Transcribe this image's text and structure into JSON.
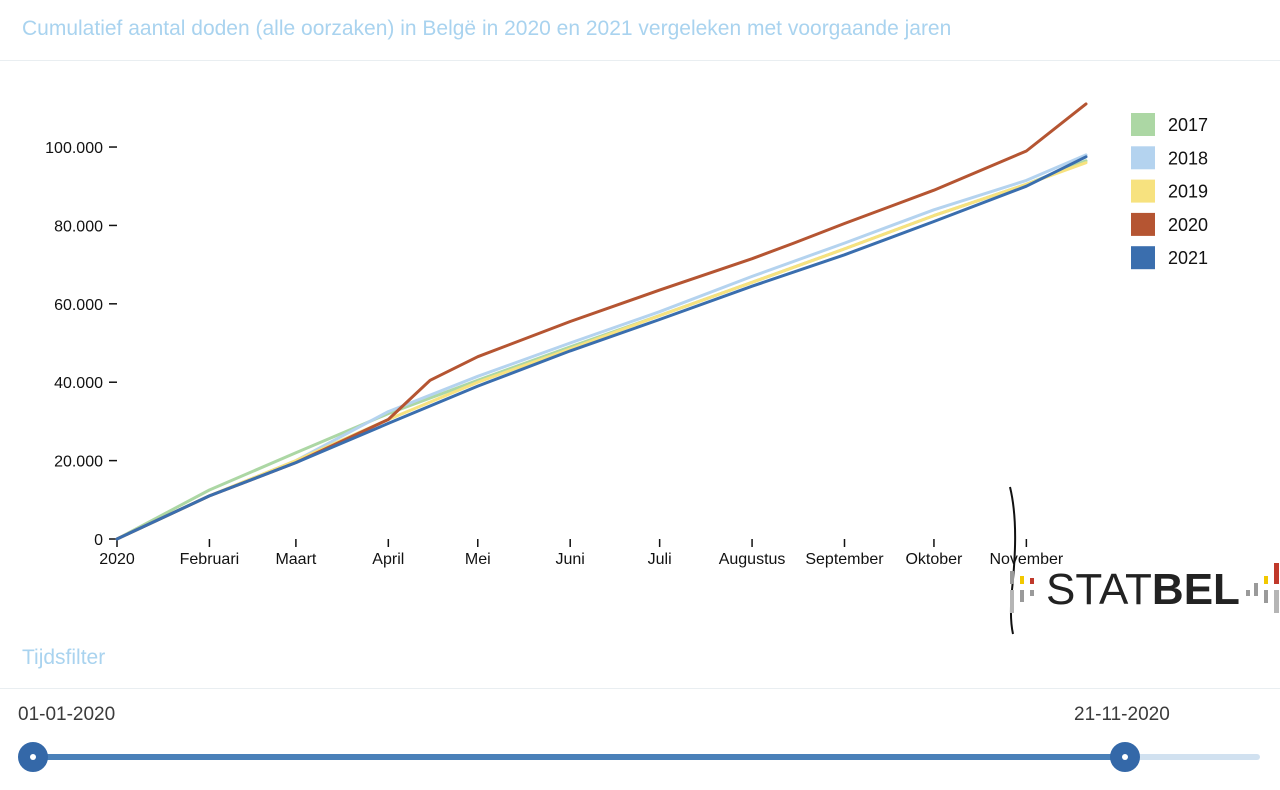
{
  "header": {
    "title": "Cumulatief aantal doden (alle oorzaken) in Belgë in 2020 en 2021 vergeleken met voorgaande jaren"
  },
  "chart_data": {
    "type": "line",
    "title": "Cumulatief aantal doden (alle oorzaken) in Belgë in 2020 en 2021 vergeleken met voorgaande jaren",
    "xlabel": "",
    "ylabel": "",
    "x_tick_labels": [
      "2020",
      "Februari",
      "Maart",
      "April",
      "Mei",
      "Juni",
      "Juli",
      "Augustus",
      "September",
      "Oktober",
      "November"
    ],
    "y_ticks": [
      0,
      20000,
      40000,
      60000,
      80000,
      100000
    ],
    "y_tick_labels": [
      "0",
      "20.000",
      "40.000",
      "60.000",
      "80.000",
      "100.000"
    ],
    "ylim": [
      0,
      112000
    ],
    "xlim": [
      "2020-01-01",
      "2020-11-21"
    ],
    "grid": false,
    "legend_position": "top-right",
    "series": [
      {
        "name": "2017",
        "color": "#acd7a4",
        "x": [
          "2020-01-01",
          "2020-02-01",
          "2020-03-01",
          "2020-04-01",
          "2020-05-01",
          "2020-06-01",
          "2020-07-01",
          "2020-08-01",
          "2020-09-01",
          "2020-10-01",
          "2020-11-01",
          "2020-11-21"
        ],
        "y": [
          0,
          12500,
          22000,
          32000,
          40500,
          49000,
          57000,
          65500,
          74000,
          82500,
          90500,
          96500
        ]
      },
      {
        "name": "2018",
        "color": "#b4d3ef",
        "x": [
          "2020-01-01",
          "2020-02-01",
          "2020-03-01",
          "2020-04-01",
          "2020-05-01",
          "2020-06-01",
          "2020-07-01",
          "2020-08-01",
          "2020-09-01",
          "2020-10-01",
          "2020-11-01",
          "2020-11-21"
        ],
        "y": [
          0,
          11000,
          20000,
          32500,
          41500,
          50000,
          58000,
          67000,
          75500,
          84000,
          91500,
          98000
        ]
      },
      {
        "name": "2019",
        "color": "#f7e27f",
        "x": [
          "2020-01-01",
          "2020-02-01",
          "2020-03-01",
          "2020-04-01",
          "2020-05-01",
          "2020-06-01",
          "2020-07-01",
          "2020-08-01",
          "2020-09-01",
          "2020-10-01",
          "2020-11-01",
          "2020-11-21"
        ],
        "y": [
          0,
          11000,
          20000,
          30500,
          40000,
          48500,
          57000,
          65500,
          74000,
          82500,
          90500,
          96000
        ]
      },
      {
        "name": "2020",
        "color": "#b55532",
        "x": [
          "2020-01-01",
          "2020-02-01",
          "2020-03-01",
          "2020-04-01",
          "2020-04-15",
          "2020-05-01",
          "2020-06-01",
          "2020-07-01",
          "2020-08-01",
          "2020-08-15",
          "2020-09-01",
          "2020-10-01",
          "2020-11-01",
          "2020-11-21"
        ],
        "y": [
          0,
          11000,
          19500,
          30500,
          40500,
          46500,
          55500,
          63500,
          71500,
          75500,
          80500,
          89000,
          99000,
          111000
        ]
      },
      {
        "name": "2021",
        "color": "#3a6eae",
        "x": [
          "2020-01-01",
          "2020-02-01",
          "2020-03-01",
          "2020-04-01",
          "2020-05-01",
          "2020-06-01",
          "2020-07-01",
          "2020-08-01",
          "2020-09-01",
          "2020-10-01",
          "2020-11-01",
          "2020-11-21"
        ],
        "y": [
          0,
          11000,
          19500,
          29500,
          39000,
          48000,
          56000,
          64500,
          72500,
          81000,
          90000,
          97500
        ]
      }
    ]
  },
  "logo": {
    "text_light": "STAT",
    "text_bold": "BEL"
  },
  "time_filter": {
    "title": "Tijdsfilter",
    "start_date": "01-01-2020",
    "end_date": "21-11-2020",
    "start_fraction": 0,
    "end_fraction": 0.89
  }
}
